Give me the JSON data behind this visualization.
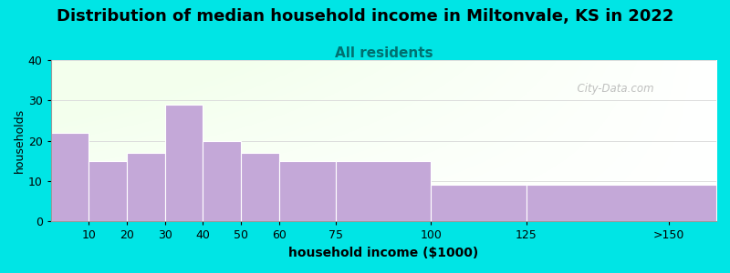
{
  "title": "Distribution of median household income in Miltonvale, KS in 2022",
  "subtitle": "All residents",
  "xlabel": "household income ($1000)",
  "ylabel": "households",
  "categories": [
    "10",
    "20",
    "30",
    "40",
    "50",
    "60",
    "75",
    "100",
    "125",
    ">150"
  ],
  "values": [
    22,
    15,
    17,
    29,
    20,
    17,
    15,
    15,
    9,
    9
  ],
  "bar_color": "#C4A8D8",
  "bar_edgecolor": "#FFFFFF",
  "background_color": "#00E5E5",
  "title_fontsize": 13,
  "subtitle_color": "#007070",
  "subtitle_fontsize": 11,
  "ylabel_fontsize": 9,
  "xlabel_fontsize": 10,
  "tick_fontsize": 9,
  "ylim": [
    0,
    40
  ],
  "yticks": [
    0,
    10,
    20,
    30,
    40
  ],
  "watermark_text": "  City-Data.com",
  "watermark_color": "#AAAAAA",
  "grid_color": "#DDDDDD",
  "bar_edges": [
    0,
    10,
    20,
    30,
    40,
    50,
    60,
    75,
    100,
    125,
    175
  ]
}
